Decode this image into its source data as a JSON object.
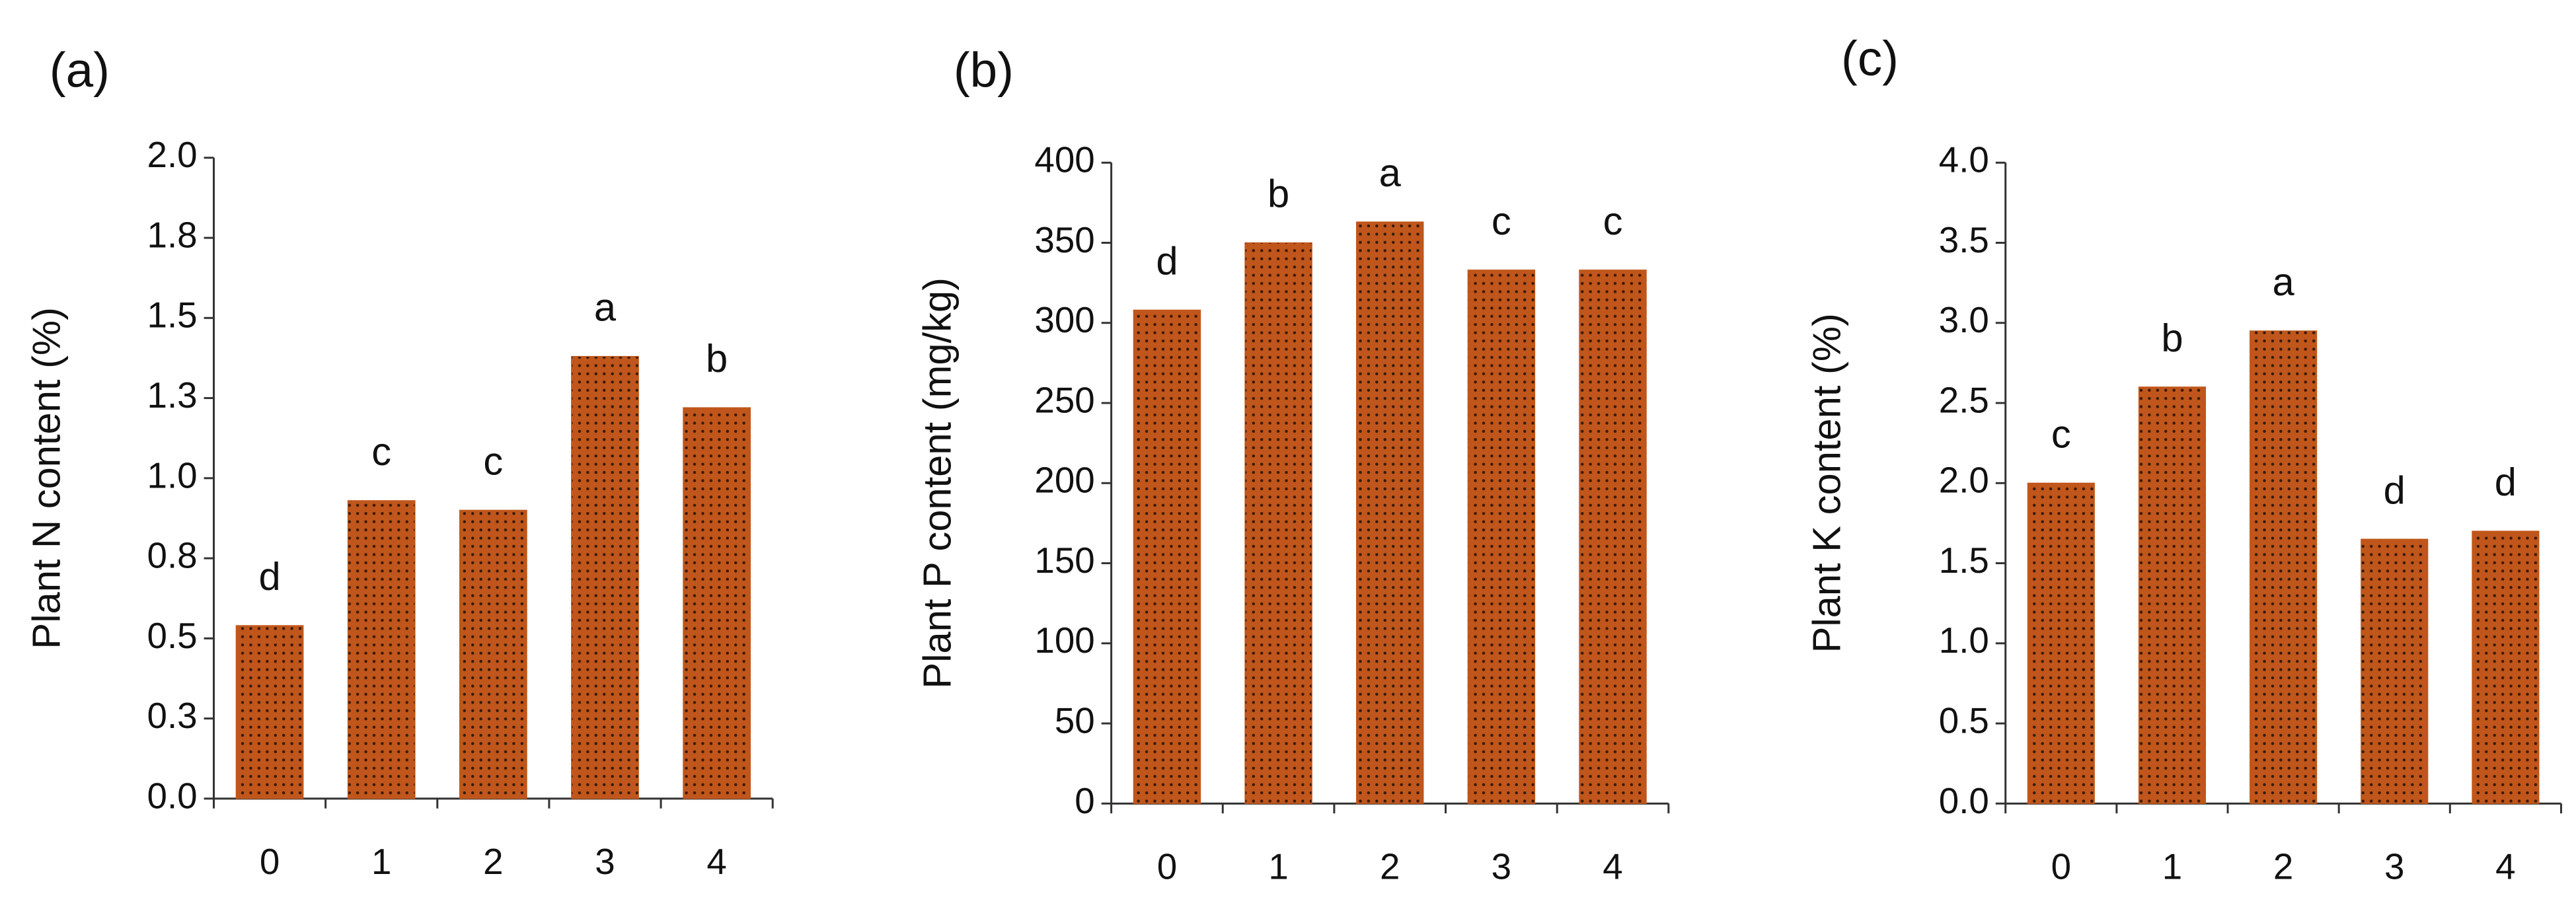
{
  "chart_data": [
    {
      "type": "bar",
      "panel_label": "(a)",
      "ylabel": "Plant N content (%)",
      "categories": [
        "0",
        "1",
        "2",
        "3",
        "4"
      ],
      "values": [
        0.54,
        0.93,
        0.9,
        1.38,
        1.22
      ],
      "annotations": [
        "d",
        "c",
        "c",
        "a",
        "b"
      ],
      "color": "#c0561b",
      "ylim": [
        0,
        2
      ],
      "yticks": [
        {
          "value": 0,
          "label": "0.0"
        },
        {
          "value": 0.25,
          "label": "0.3"
        },
        {
          "value": 0.5,
          "label": "0.5"
        },
        {
          "value": 0.75,
          "label": "0.8"
        },
        {
          "value": 1,
          "label": "1.0"
        },
        {
          "value": 1.25,
          "label": "1.3"
        },
        {
          "value": 1.5,
          "label": "1.5"
        },
        {
          "value": 1.75,
          "label": "1.8"
        },
        {
          "value": 2,
          "label": "2.0"
        }
      ]
    },
    {
      "type": "bar",
      "panel_label": "(b)",
      "ylabel": "Plant P content (mg/kg)",
      "categories": [
        "0",
        "1",
        "2",
        "3",
        "4"
      ],
      "values": [
        308,
        350,
        363,
        333,
        333
      ],
      "annotations": [
        "d",
        "b",
        "a",
        "c",
        "c"
      ],
      "color": "#c0561b",
      "ylim": [
        0,
        400
      ],
      "yticks": [
        0,
        50,
        100,
        150,
        200,
        250,
        300,
        350,
        400
      ]
    },
    {
      "type": "bar",
      "panel_label": "(c)",
      "ylabel": "Plant K content (%)",
      "categories": [
        "0",
        "1",
        "2",
        "3",
        "4"
      ],
      "values": [
        2.0,
        2.6,
        2.95,
        1.65,
        1.7
      ],
      "annotations": [
        "c",
        "b",
        "a",
        "d",
        "d"
      ],
      "color": "#c0561b",
      "ylim": [
        0,
        4
      ],
      "yticks": [
        {
          "value": 0,
          "label": "0.0"
        },
        {
          "value": 0.5,
          "label": "0.5"
        },
        {
          "value": 1,
          "label": "1.0"
        },
        {
          "value": 1.5,
          "label": "1.5"
        },
        {
          "value": 2,
          "label": "2.0"
        },
        {
          "value": 2.5,
          "label": "2.5"
        },
        {
          "value": 3,
          "label": "3.0"
        },
        {
          "value": 3.5,
          "label": "3.5"
        },
        {
          "value": 4,
          "label": "4.0"
        }
      ]
    }
  ]
}
